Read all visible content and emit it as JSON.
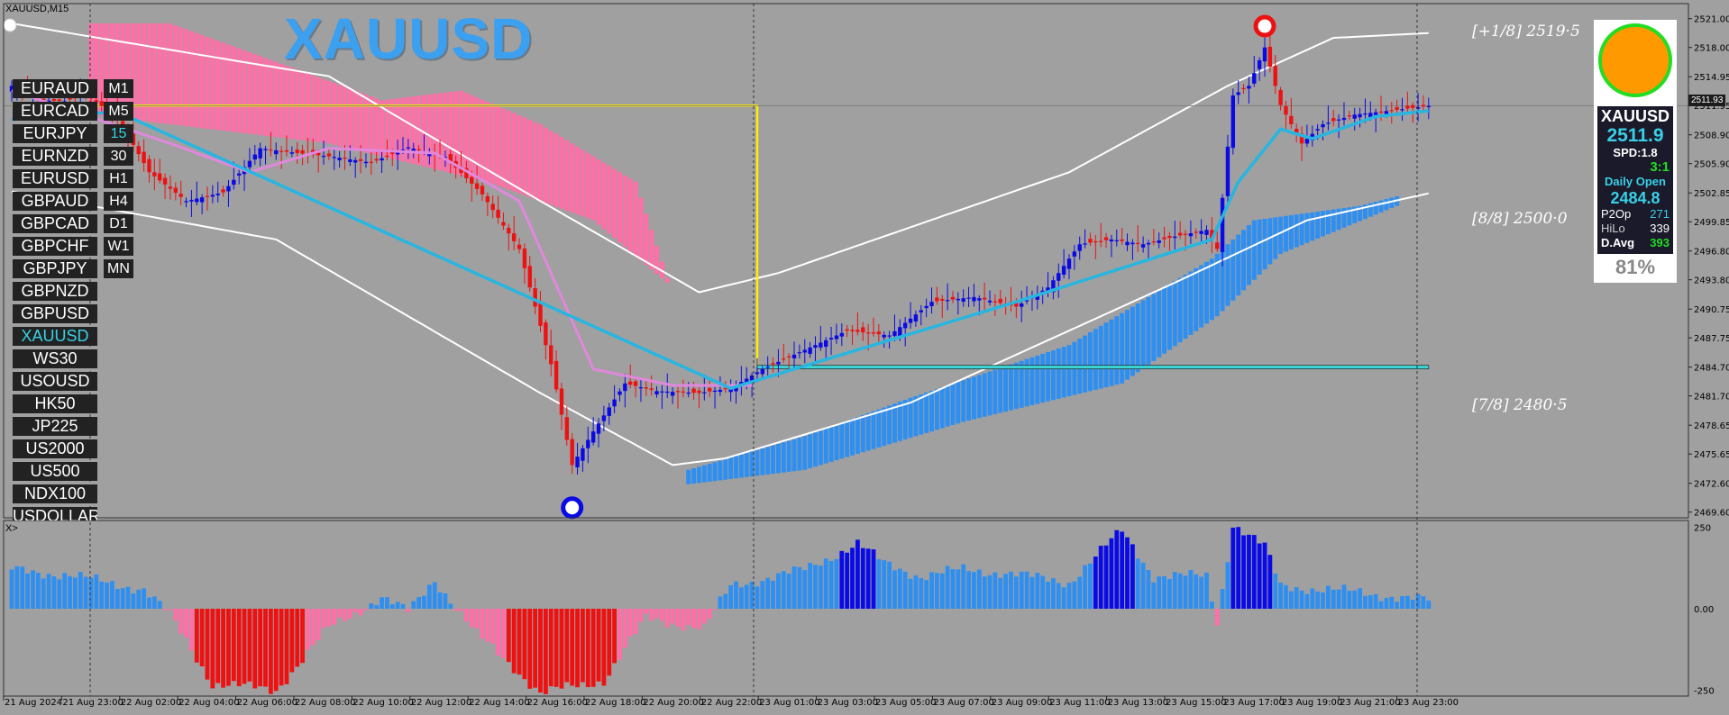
{
  "chart_header": {
    "symbol_timeframe": "XAUUSD,M15",
    "subwindow_label": "X>"
  },
  "title": "XAUUSD",
  "symbols": [
    "EURAUD",
    "EURCAD",
    "EURJPY",
    "EURNZD",
    "EURUSD",
    "GBPAUD",
    "GBPCAD",
    "GBPCHF",
    "GBPJPY",
    "GBPNZD",
    "GBPUSD",
    "XAUUSD",
    "WS30",
    "USOUSD",
    "HK50",
    "JP225",
    "US2000",
    "US500",
    "NDX100",
    "USDOLLAR"
  ],
  "active_symbol": "XAUUSD",
  "timeframes": [
    "M1",
    "M5",
    "15",
    "30",
    "H1",
    "H4",
    "D1",
    "W1",
    "MN"
  ],
  "active_timeframe": "15",
  "murrey_labels": [
    {
      "text": "[+1/8] 2519·5",
      "price": 2519.5
    },
    {
      "text": "[8/8] 2500·0",
      "price": 2500.0
    },
    {
      "text": "[7/8] 2480·5",
      "price": 2480.5
    }
  ],
  "info_panel": {
    "symbol": "XAUUSD",
    "price": "2511.9",
    "spread_label": "SPD:",
    "spread": "1.8",
    "ratio": "3:1",
    "daily_open_label": "Daily Open",
    "daily_open": "2484.8",
    "p2op_label": "P2Op",
    "p2op": "271",
    "hilo_label": "HiLo",
    "hilo": "339",
    "davg_label": "D.Avg",
    "davg": "393",
    "percent": "81%"
  },
  "current_price_tag": "2511.93",
  "colors": {
    "bull": "#0a0ae6",
    "bear": "#ee1111",
    "ma_pink": "#e088dd",
    "ma_cyan": "#28b6e0",
    "cloud_pink": "#ff6fa8",
    "cloud_blue": "#2f8ff0",
    "band": "#ffffff",
    "level_yellow": "#ffee00"
  },
  "chart_data": {
    "type": "candlestick",
    "price_axis": {
      "ticks": [
        2521.0,
        2518.0,
        2514.95,
        2511.95,
        2508.9,
        2505.9,
        2502.85,
        2499.85,
        2496.8,
        2493.8,
        2490.75,
        2487.75,
        2484.7,
        2481.7,
        2478.65,
        2475.65,
        2472.6,
        2469.6
      ],
      "ylim": [
        2469.1,
        2522.1
      ]
    },
    "indicator_axis": {
      "ticks": [
        "250",
        "0.00",
        "-250"
      ],
      "ylim": [
        -260,
        260
      ]
    },
    "time_labels": [
      "21 Aug 2024",
      "21 Aug 23:00",
      "22 Aug 02:00",
      "22 Aug 04:00",
      "22 Aug 06:00",
      "22 Aug 08:00",
      "22 Aug 10:00",
      "22 Aug 12:00",
      "22 Aug 14:00",
      "22 Aug 16:00",
      "22 Aug 18:00",
      "22 Aug 20:00",
      "22 Aug 22:00",
      "23 Aug 01:00",
      "23 Aug 03:00",
      "23 Aug 05:00",
      "23 Aug 07:00",
      "23 Aug 09:00",
      "23 Aug 11:00",
      "23 Aug 13:00",
      "23 Aug 15:00",
      "23 Aug 17:00",
      "23 Aug 19:00",
      "23 Aug 21:00",
      "23 Aug 23:00"
    ],
    "close_anchors": [
      {
        "bar": 0,
        "close": 2514.0
      },
      {
        "bar": 6,
        "close": 2512.5
      },
      {
        "bar": 10,
        "close": 2512.4
      },
      {
        "bar": 14,
        "close": 2513.1
      },
      {
        "bar": 20,
        "close": 2510.7
      },
      {
        "bar": 26,
        "close": 2505.0
      },
      {
        "bar": 33,
        "close": 2502.0
      },
      {
        "bar": 40,
        "close": 2502.9
      },
      {
        "bar": 47,
        "close": 2507.5
      },
      {
        "bar": 54,
        "close": 2507.0
      },
      {
        "bar": 61,
        "close": 2506.6
      },
      {
        "bar": 68,
        "close": 2506.0
      },
      {
        "bar": 75,
        "close": 2507.6
      },
      {
        "bar": 82,
        "close": 2506.6
      },
      {
        "bar": 89,
        "close": 2502.7
      },
      {
        "bar": 96,
        "close": 2497.0
      },
      {
        "bar": 102,
        "close": 2485.0
      },
      {
        "bar": 106,
        "close": 2474.5
      },
      {
        "bar": 110,
        "close": 2478.0
      },
      {
        "bar": 116,
        "close": 2483.0
      },
      {
        "bar": 122,
        "close": 2482.2
      },
      {
        "bar": 130,
        "close": 2482.0
      },
      {
        "bar": 136,
        "close": 2482.5
      },
      {
        "bar": 142,
        "close": 2484.5
      },
      {
        "bar": 150,
        "close": 2486.5
      },
      {
        "bar": 158,
        "close": 2488.5
      },
      {
        "bar": 166,
        "close": 2488.0
      },
      {
        "bar": 174,
        "close": 2491.5
      },
      {
        "bar": 182,
        "close": 2492.0
      },
      {
        "bar": 190,
        "close": 2491.0
      },
      {
        "bar": 196,
        "close": 2493.0
      },
      {
        "bar": 202,
        "close": 2497.5
      },
      {
        "bar": 208,
        "close": 2498.0
      },
      {
        "bar": 214,
        "close": 2497.5
      },
      {
        "bar": 220,
        "close": 2498.3
      },
      {
        "bar": 226,
        "close": 2499.0
      },
      {
        "bar": 228,
        "close": 2497.0
      },
      {
        "bar": 231,
        "close": 2513.0
      },
      {
        "bar": 234,
        "close": 2514.0
      },
      {
        "bar": 237,
        "close": 2518.0
      },
      {
        "bar": 240,
        "close": 2512.0
      },
      {
        "bar": 244,
        "close": 2508.0
      },
      {
        "bar": 248,
        "close": 2510.0
      },
      {
        "bar": 254,
        "close": 2511.0
      },
      {
        "bar": 262,
        "close": 2511.5
      },
      {
        "bar": 268,
        "close": 2511.9
      }
    ],
    "bar_count": 269,
    "ma_pink_anchors": [
      {
        "bar": 0,
        "v": 2513.5
      },
      {
        "bar": 30,
        "v": 2508.0
      },
      {
        "bar": 45,
        "v": 2505.0
      },
      {
        "bar": 60,
        "v": 2507.5
      },
      {
        "bar": 80,
        "v": 2507.0
      },
      {
        "bar": 96,
        "v": 2502.0
      },
      {
        "bar": 110,
        "v": 2484.5
      },
      {
        "bar": 125,
        "v": 2482.8
      },
      {
        "bar": 140,
        "v": 2482.8
      }
    ],
    "ma_cyan_anchors": [
      {
        "bar": 0,
        "v": 2510.5
      },
      {
        "bar": 20,
        "v": 2511.3
      },
      {
        "bar": 136,
        "v": 2482.5
      },
      {
        "bar": 160,
        "v": 2486.5
      },
      {
        "bar": 190,
        "v": 2491.5
      },
      {
        "bar": 227,
        "v": 2498.0
      },
      {
        "bar": 232,
        "v": 2504.0
      },
      {
        "bar": 240,
        "v": 2509.5
      },
      {
        "bar": 246,
        "v": 2508.5
      },
      {
        "bar": 258,
        "v": 2510.8
      },
      {
        "bar": 268,
        "v": 2511.4
      }
    ],
    "band_upper_anchors": [
      {
        "bar": 0,
        "v": 2520.5
      },
      {
        "bar": 60,
        "v": 2515.0
      },
      {
        "bar": 100,
        "v": 2502.0
      },
      {
        "bar": 130,
        "v": 2492.5
      },
      {
        "bar": 145,
        "v": 2494.5
      },
      {
        "bar": 200,
        "v": 2505.0
      },
      {
        "bar": 230,
        "v": 2514.0
      },
      {
        "bar": 250,
        "v": 2519.0
      },
      {
        "bar": 268,
        "v": 2519.5
      }
    ],
    "band_lower_anchors": [
      {
        "bar": 0,
        "v": 2503.0
      },
      {
        "bar": 50,
        "v": 2498.0
      },
      {
        "bar": 100,
        "v": 2482.0
      },
      {
        "bar": 125,
        "v": 2474.5
      },
      {
        "bar": 135,
        "v": 2475.2
      },
      {
        "bar": 170,
        "v": 2481.0
      },
      {
        "bar": 220,
        "v": 2493.5
      },
      {
        "bar": 245,
        "v": 2500.0
      },
      {
        "bar": 268,
        "v": 2502.8
      }
    ],
    "cloud_pink_anchors": [
      {
        "bar": 15,
        "v": 2520.5
      },
      {
        "bar": 30,
        "v": 2520.5
      },
      {
        "bar": 50,
        "v": 2516.5
      },
      {
        "bar": 70,
        "v": 2512.5
      },
      {
        "bar": 85,
        "v": 2513.5
      },
      {
        "bar": 100,
        "v": 2510.0
      },
      {
        "bar": 118,
        "v": 2504.0
      },
      {
        "bar": 124,
        "v": 2494.0
      }
    ],
    "cloud_pink_base_anchors": [
      {
        "bar": 15,
        "v": 2511.0
      },
      {
        "bar": 60,
        "v": 2508.0
      },
      {
        "bar": 90,
        "v": 2504.0
      },
      {
        "bar": 110,
        "v": 2500.0
      },
      {
        "bar": 124,
        "v": 2493.5
      }
    ],
    "cloud_blue_anchors": [
      {
        "bar": 128,
        "v": 2474.0
      },
      {
        "bar": 150,
        "v": 2477.5
      },
      {
        "bar": 170,
        "v": 2481.5
      },
      {
        "bar": 200,
        "v": 2487.0
      },
      {
        "bar": 227,
        "v": 2496.0
      },
      {
        "bar": 235,
        "v": 2500.0
      },
      {
        "bar": 255,
        "v": 2501.5
      },
      {
        "bar": 262,
        "v": 2502.5
      }
    ],
    "cloud_blue_base_anchors": [
      {
        "bar": 128,
        "v": 2472.5
      },
      {
        "bar": 150,
        "v": 2474.0
      },
      {
        "bar": 180,
        "v": 2479.0
      },
      {
        "bar": 210,
        "v": 2483.0
      },
      {
        "bar": 228,
        "v": 2490.0
      },
      {
        "bar": 240,
        "v": 2496.5
      },
      {
        "bar": 262,
        "v": 2501.5
      }
    ],
    "level_lines": [
      {
        "name": "yellow-level",
        "price": 2511.95,
        "from_bar": 0,
        "to_bar": 141
      },
      {
        "name": "cyan-level",
        "price": 2484.7,
        "from_bar": 141,
        "to_bar": 268
      }
    ],
    "swing_markers": [
      {
        "type": "high",
        "bar": 237,
        "price": 2520.5
      },
      {
        "type": "low",
        "bar": 106,
        "price": 2471.0
      }
    ],
    "histogram_anchors": [
      {
        "bar": 0,
        "v": 120
      },
      {
        "bar": 10,
        "v": 105
      },
      {
        "bar": 25,
        "v": 60
      },
      {
        "bar": 30,
        "v": -20
      },
      {
        "bar": 38,
        "v": -230
      },
      {
        "bar": 50,
        "v": -250
      },
      {
        "bar": 60,
        "v": -60
      },
      {
        "bar": 70,
        "v": 35
      },
      {
        "bar": 75,
        "v": -10
      },
      {
        "bar": 80,
        "v": 90
      },
      {
        "bar": 88,
        "v": -80
      },
      {
        "bar": 95,
        "v": -180
      },
      {
        "bar": 100,
        "v": -260
      },
      {
        "bar": 112,
        "v": -220
      },
      {
        "bar": 120,
        "v": -30
      },
      {
        "bar": 131,
        "v": -60
      },
      {
        "bar": 136,
        "v": 70
      },
      {
        "bar": 150,
        "v": 120
      },
      {
        "bar": 160,
        "v": 200
      },
      {
        "bar": 165,
        "v": 140
      },
      {
        "bar": 172,
        "v": 100
      },
      {
        "bar": 180,
        "v": 120
      },
      {
        "bar": 188,
        "v": 110
      },
      {
        "bar": 200,
        "v": 80
      },
      {
        "bar": 210,
        "v": 240
      },
      {
        "bar": 216,
        "v": 100
      },
      {
        "bar": 226,
        "v": 100
      },
      {
        "bar": 228,
        "v": -40
      },
      {
        "bar": 231,
        "v": 260
      },
      {
        "bar": 237,
        "v": 190
      },
      {
        "bar": 240,
        "v": 70
      },
      {
        "bar": 255,
        "v": 50
      },
      {
        "bar": 268,
        "v": 25
      }
    ]
  }
}
